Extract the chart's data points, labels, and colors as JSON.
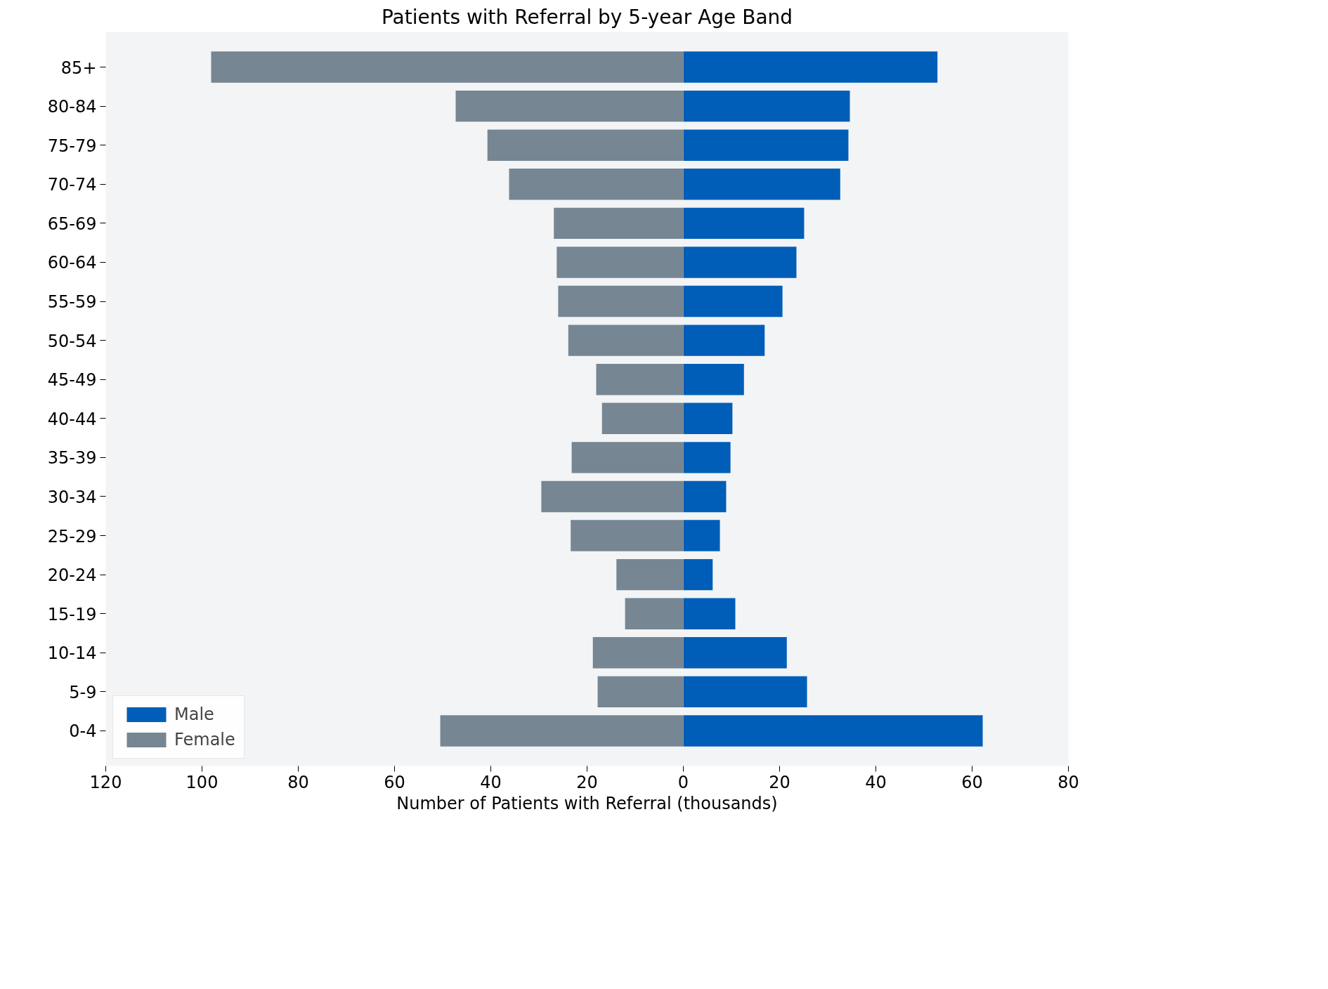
{
  "chart_data": {
    "type": "bar",
    "orientation": "horizontal",
    "title": "Patients with Referral by 5-year Age Band",
    "xlabel": "Number of Patients with Referral (thousands)",
    "categories": [
      "85+",
      "80-84",
      "75-79",
      "70-74",
      "65-69",
      "60-64",
      "55-59",
      "50-54",
      "45-49",
      "40-44",
      "35-39",
      "30-34",
      "25-29",
      "20-24",
      "15-19",
      "10-14",
      "5-9",
      "0-4"
    ],
    "series": [
      {
        "name": "Male",
        "color": "#005eb8",
        "values": [
          52.8,
          34.6,
          34.3,
          32.6,
          25.1,
          23.5,
          20.6,
          16.9,
          12.6,
          10.2,
          9.8,
          8.9,
          7.6,
          6.1,
          10.8,
          21.5,
          25.7,
          62.2
        ]
      },
      {
        "name": "Female",
        "color": "#768692",
        "values": [
          -98.1,
          -47.3,
          -40.7,
          -36.2,
          -26.9,
          -26.3,
          -26.0,
          -23.9,
          -18.1,
          -16.9,
          -23.2,
          -29.5,
          -23.4,
          -13.9,
          -12.1,
          -18.8,
          -17.8,
          -50.5
        ]
      }
    ],
    "xlim": [
      -120,
      80
    ],
    "xticks": [
      {
        "value": -120,
        "label": "120"
      },
      {
        "value": -100,
        "label": "100"
      },
      {
        "value": -80,
        "label": "80"
      },
      {
        "value": -60,
        "label": "60"
      },
      {
        "value": -40,
        "label": "40"
      },
      {
        "value": -20,
        "label": "20"
      },
      0,
      20,
      40,
      60,
      80
    ],
    "stacked": true,
    "grid": false,
    "legend": "bottom left"
  }
}
